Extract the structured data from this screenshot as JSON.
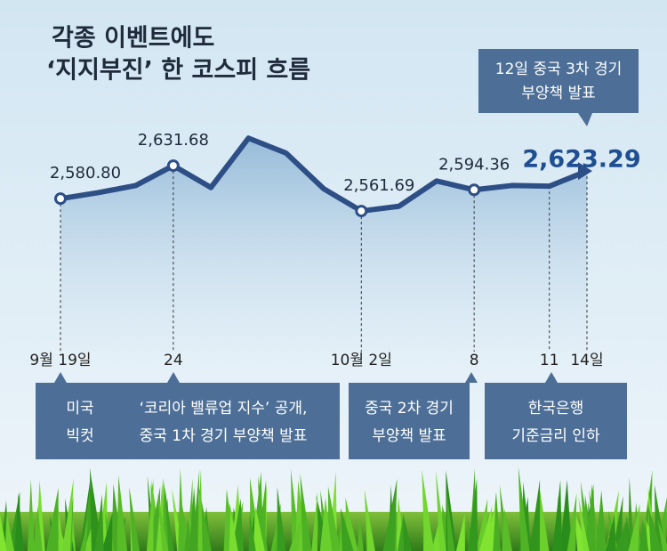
{
  "title_lines": [
    "각종 이벤트에도",
    "‘지지부진’ 한 코스피 흐름"
  ],
  "chart_data": {
    "type": "line",
    "categories": [
      "9월 19일",
      null,
      null,
      "24",
      null,
      null,
      null,
      null,
      "10월 2일",
      null,
      null,
      "8",
      null,
      "11",
      "14일"
    ],
    "values": [
      2580.8,
      2590,
      2601,
      2631.68,
      2598,
      2674,
      2651,
      2596,
      2561.69,
      2569,
      2608,
      2594.36,
      2601,
      2600,
      2623.29
    ],
    "value_labels": [
      "2,580.80",
      null,
      null,
      "2,631.68",
      null,
      null,
      null,
      null,
      "2,561.69",
      null,
      null,
      "2,594.36",
      null,
      null,
      "2,623.29"
    ],
    "color": "#2d4f86",
    "ylim": [
      2345,
      2887
    ]
  },
  "callout": {
    "lines": [
      "12일 중국 3차 경기",
      "부양책 발표"
    ]
  },
  "events": [
    {
      "lines": [
        "미국",
        "빅컷"
      ]
    },
    {
      "lines": [
        "‘코리아 밸류업 지수’ 공개,",
        "중국 1차 경기 부양책 발표"
      ]
    },
    {
      "lines": [
        "중국 2차 경기",
        "부양책 발표"
      ]
    },
    {
      "lines": [
        "한국은행",
        "기준금리 인하"
      ]
    }
  ]
}
